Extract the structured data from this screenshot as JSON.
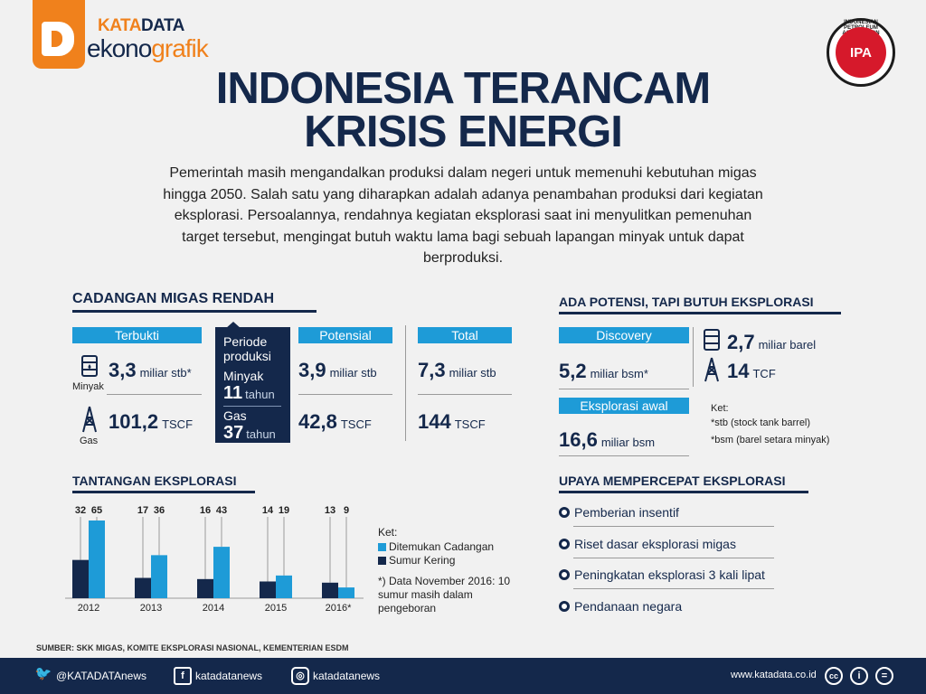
{
  "brand": {
    "katadata_a": "KATA",
    "katadata_b": "DATA",
    "ekono": "ekono",
    "grafik": "grafik"
  },
  "ipa": {
    "abbr": "IPA",
    "ring": "INDONESIAN PETROLEUM ASSOCIATION"
  },
  "title_line1": "INDONESIA TERANCAM",
  "title_line2": "KRISIS ENERGI",
  "intro": "Pemerintah masih mengandalkan produksi dalam negeri untuk memenuhi kebutuhan migas hingga 2050. Salah satu yang diharapkan adalah adanya penambahan produksi dari kegiatan eksplorasi. Persoalannya, rendahnya kegiatan eksplorasi saat ini menyulitkan pemenuhan target tersebut, mengingat butuh waktu lama bagi sebuah lapangan minyak untuk dapat berproduksi.",
  "cadangan": {
    "title": "CADANGAN MIGAS RENDAH",
    "terbukti": "Terbukti",
    "potensial": "Potensial",
    "total": "Total",
    "minyak_label": "Minyak",
    "gas_label": "Gas",
    "t_oil": "3,3",
    "t_oil_unit": "miliar stb*",
    "t_gas": "101,2",
    "t_gas_unit": "TSCF",
    "p_oil": "3,9",
    "p_oil_unit": "miliar stb",
    "p_gas": "42,8",
    "p_gas_unit": "TSCF",
    "tot_oil": "7,3",
    "tot_oil_unit": "miliar stb",
    "tot_gas": "144",
    "tot_gas_unit": "TSCF",
    "periode": "Periode produksi",
    "periode_minyak": "Minyak",
    "minyak_tahun": "11",
    "gas": "Gas",
    "gas_tahun": "37",
    "tahun": "tahun"
  },
  "potensi": {
    "title": "ADA POTENSI, TAPI BUTUH EKSPLORASI",
    "discovery": "Discovery",
    "disc_val": "5,2",
    "disc_unit": "miliar bsm*",
    "oil_val": "2,7",
    "oil_unit": "miliar barel",
    "gas_val": "14",
    "gas_unit": "TCF",
    "awal": "Eksplorasi awal",
    "awal_val": "16,6",
    "awal_unit": "miliar bsm",
    "ket": "Ket:",
    "ket1": "*stb (stock tank barrel)",
    "ket2": "*bsm (barel setara minyak)"
  },
  "tantangan": {
    "title": "TANTANGAN EKSPLORASI",
    "ket": "Ket:",
    "leg1": "Ditemukan Cadangan",
    "leg2": "Sumur Kering",
    "note": "*) Data November 2016: 10 sumur masih dalam pengeboran"
  },
  "chart_data": {
    "type": "bar",
    "categories": [
      "2012",
      "2013",
      "2014",
      "2015",
      "2016*"
    ],
    "series": [
      {
        "name": "Sumur Kering",
        "values": [
          32,
          17,
          16,
          14,
          13
        ],
        "color": "#14284b"
      },
      {
        "name": "Ditemukan Cadangan",
        "values": [
          65,
          36,
          43,
          19,
          9
        ],
        "color": "#1e9bd7"
      }
    ]
  },
  "upaya": {
    "title": "UPAYA MEMPERCEPAT EKSPLORASI",
    "items": [
      "Pemberian insentif",
      "Riset dasar eksplorasi migas",
      "Peningkatan eksplorasi 3 kali lipat",
      "Pendanaan negara"
    ]
  },
  "sumber": "SUMBER: SKK MIGAS, KOMITE EKSPLORASI NASIONAL, KEMENTERIAN ESDM",
  "footer": {
    "twitter": "@KATADATAnews",
    "facebook": "katadatanews",
    "instagram": "katadatanews",
    "site": "www.katadata.co.id"
  }
}
